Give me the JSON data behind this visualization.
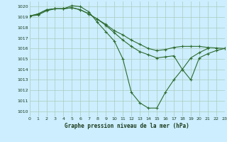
{
  "title": "Graphe pression niveau de la mer (hPa)",
  "background_color": "#cceeff",
  "grid_color": "#aaccbb",
  "line_color": "#2d6b2d",
  "xlim": [
    0,
    23
  ],
  "ylim": [
    1009.5,
    1020.5
  ],
  "yticks": [
    1010,
    1011,
    1012,
    1013,
    1014,
    1015,
    1016,
    1017,
    1018,
    1019,
    1020
  ],
  "xticks": [
    0,
    1,
    2,
    3,
    4,
    5,
    6,
    7,
    8,
    9,
    10,
    11,
    12,
    13,
    14,
    15,
    16,
    17,
    18,
    19,
    20,
    21,
    22,
    23
  ],
  "series": [
    {
      "x": [
        0,
        1,
        2,
        3,
        4,
        5,
        6,
        7,
        8,
        9,
        10,
        11,
        12,
        13,
        14,
        15,
        16,
        17,
        18,
        19,
        20,
        21
      ],
      "y": [
        1019.1,
        1019.2,
        1019.6,
        1019.8,
        1019.8,
        1020.1,
        1020.0,
        1019.5,
        1018.5,
        1017.6,
        1016.7,
        1015.0,
        1011.8,
        1010.8,
        1010.3,
        1010.3,
        1011.8,
        1013.0,
        1014.0,
        1015.1,
        1015.6,
        1016.0
      ]
    },
    {
      "x": [
        0,
        1,
        2,
        3,
        4,
        5,
        6,
        7,
        8,
        9,
        10,
        11,
        12,
        13,
        14,
        15,
        16,
        17,
        18,
        19,
        20,
        21,
        22,
        23
      ],
      "y": [
        1019.1,
        1019.3,
        1019.7,
        1019.8,
        1019.8,
        1019.9,
        1019.7,
        1019.3,
        1018.8,
        1018.2,
        1017.5,
        1016.8,
        1016.2,
        1015.7,
        1015.4,
        1015.1,
        1015.2,
        1015.3,
        1014.0,
        1013.0,
        1015.1,
        1015.5,
        1015.8,
        1016.0
      ]
    },
    {
      "x": [
        0,
        1,
        2,
        3,
        4,
        5,
        6,
        7,
        8,
        9,
        10,
        11,
        12,
        13,
        14,
        15,
        16,
        17,
        18,
        19,
        20,
        21,
        22,
        23
      ],
      "y": [
        1019.1,
        1019.3,
        1019.7,
        1019.8,
        1019.8,
        1019.9,
        1019.7,
        1019.3,
        1018.8,
        1018.3,
        1017.7,
        1017.3,
        1016.8,
        1016.4,
        1016.0,
        1015.8,
        1015.9,
        1016.1,
        1016.2,
        1016.2,
        1016.2,
        1016.1,
        1016.05,
        1016.0
      ]
    }
  ]
}
